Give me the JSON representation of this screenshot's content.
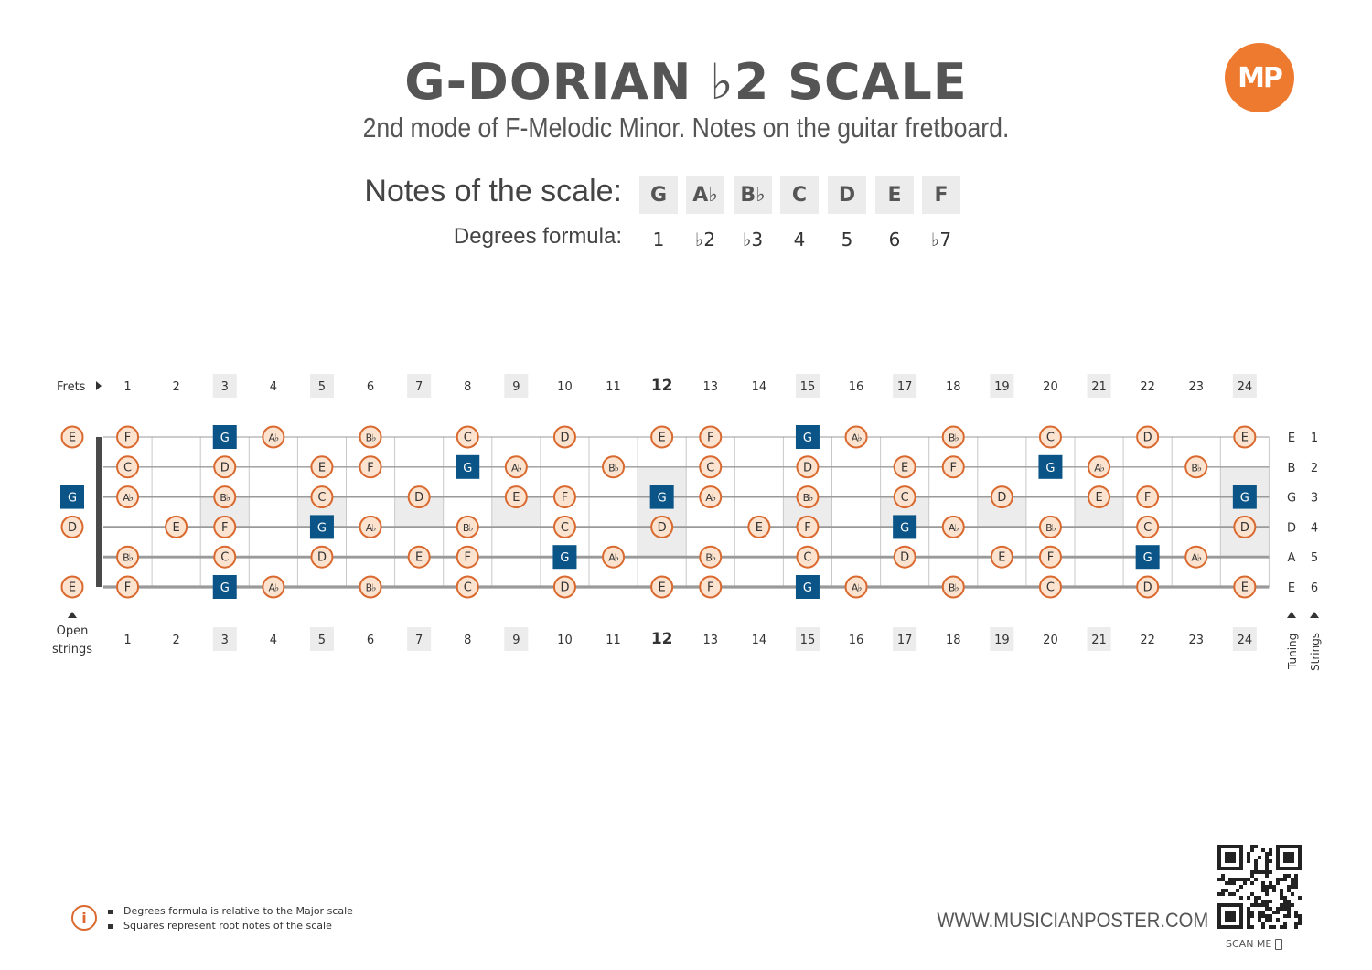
{
  "header": {
    "title": "G-DORIAN ♭2 SCALE",
    "subtitle": "2nd mode of F-Melodic Minor. Notes on the guitar fretboard.",
    "logo_text": "MP"
  },
  "scale": {
    "notes_label": "Notes of the scale:",
    "degrees_label": "Degrees formula:",
    "notes": [
      "G",
      "A♭",
      "B♭",
      "C",
      "D",
      "E",
      "F"
    ],
    "degrees": [
      "1",
      "♭2",
      "♭3",
      "4",
      "5",
      "6",
      "♭7"
    ]
  },
  "fretboard": {
    "frets_label": "Frets",
    "open_label_line1": "Open",
    "open_label_line2": "strings",
    "tuning_label": "Tuning",
    "strings_label": "Strings",
    "fret_numbers": [
      "1",
      "2",
      "3",
      "4",
      "5",
      "6",
      "7",
      "8",
      "9",
      "10",
      "11",
      "12",
      "13",
      "14",
      "15",
      "16",
      "17",
      "18",
      "19",
      "20",
      "21",
      "22",
      "23",
      "24"
    ],
    "marker_frets": [
      3,
      5,
      7,
      9,
      12,
      15,
      17,
      19,
      21,
      24
    ],
    "tuning": [
      "E",
      "B",
      "G",
      "D",
      "A",
      "E"
    ],
    "string_numbers": [
      "1",
      "2",
      "3",
      "4",
      "5",
      "6"
    ],
    "root_note": "G",
    "strings_notes": [
      [
        "E",
        "F",
        "",
        "G",
        "Ab",
        "",
        "Bb",
        "",
        "C",
        "",
        "D",
        "",
        "E",
        "F",
        "",
        "G",
        "Ab",
        "",
        "Bb",
        "",
        "C",
        "",
        "D",
        "",
        "E"
      ],
      [
        "",
        "C",
        "",
        "D",
        "",
        "E",
        "F",
        "",
        "G",
        "Ab",
        "",
        "Bb",
        "",
        "C",
        "",
        "D",
        "",
        "E",
        "F",
        "",
        "G",
        "Ab",
        "",
        "Bb",
        ""
      ],
      [
        "G",
        "Ab",
        "",
        "Bb",
        "",
        "C",
        "",
        "D",
        "",
        "E",
        "F",
        "",
        "G",
        "Ab",
        "",
        "Bb",
        "",
        "C",
        "",
        "D",
        "",
        "E",
        "F",
        "",
        "G"
      ],
      [
        "D",
        "",
        "E",
        "F",
        "",
        "G",
        "Ab",
        "",
        "Bb",
        "",
        "C",
        "",
        "D",
        "",
        "E",
        "F",
        "",
        "G",
        "Ab",
        "",
        "Bb",
        "",
        "C",
        "",
        "D"
      ],
      [
        "",
        "Bb",
        "",
        "C",
        "",
        "D",
        "",
        "E",
        "F",
        "",
        "G",
        "Ab",
        "",
        "Bb",
        "",
        "C",
        "",
        "D",
        "",
        "E",
        "F",
        "",
        "G",
        "Ab",
        ""
      ],
      [
        "E",
        "F",
        "",
        "G",
        "Ab",
        "",
        "Bb",
        "",
        "C",
        "",
        "D",
        "",
        "E",
        "F",
        "",
        "G",
        "Ab",
        "",
        "Bb",
        "",
        "C",
        "",
        "D",
        "",
        "E"
      ]
    ]
  },
  "footer": {
    "legend": [
      "Degrees formula is relative to the Major scale",
      "Squares represent root notes of the scale"
    ],
    "website": "WWW.MUSICIANPOSTER.COM",
    "scan_label": "SCAN ME"
  },
  "colors": {
    "accent": "#d9692e",
    "note_fill": "#fbe3cf",
    "root_fill": "#0b5488",
    "marker_fill": "#ececec",
    "nut": "#4a4a4a"
  }
}
